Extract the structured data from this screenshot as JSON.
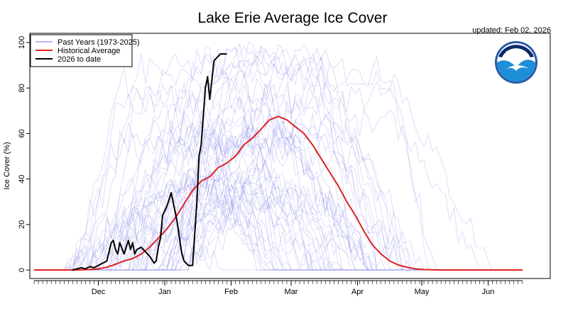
{
  "chart_data": {
    "type": "line",
    "title": "Lake Erie Average Ice Cover",
    "updated": "updated: Feb 02, 2026",
    "ylabel": "Ice Cover (%)",
    "xlabel": "",
    "xlim": [
      -2,
      241
    ],
    "ylim": [
      0,
      100
    ],
    "yticks": [
      "0",
      "20",
      "40",
      "60",
      "80",
      "100"
    ],
    "x_ticks": [
      {
        "label": "Dec",
        "day": 30
      },
      {
        "label": "Jan",
        "day": 61
      },
      {
        "label": "Feb",
        "day": 92
      },
      {
        "label": "Mar",
        "day": 120
      },
      {
        "label": "Apr",
        "day": 151
      },
      {
        "label": "May",
        "day": 181
      },
      {
        "label": "Jun",
        "day": 212
      }
    ],
    "grid": false,
    "legend": {
      "position": "top-left",
      "entries": [
        {
          "label": "Past Years (1973-2025)",
          "color": "#8f8fe6"
        },
        {
          "label": "Historical Average",
          "color": "#e02020"
        },
        {
          "label": "2026 to date",
          "color": "#000000"
        }
      ]
    },
    "logo": {
      "text": "NOAA"
    },
    "series": [
      {
        "name": "Historical Average",
        "color": "#e02020",
        "x": [
          0,
          10,
          20,
          26,
          30,
          34,
          38,
          42,
          46,
          50,
          54,
          58,
          62,
          66,
          70,
          74,
          78,
          82,
          86,
          90,
          94,
          98,
          102,
          106,
          110,
          114,
          118,
          122,
          126,
          130,
          134,
          138,
          142,
          146,
          150,
          154,
          158,
          162,
          166,
          170,
          174,
          178,
          182,
          186,
          190,
          194,
          198,
          206,
          214,
          222,
          228
        ],
        "y": [
          0,
          0,
          0,
          0.2,
          0.5,
          1.2,
          2.5,
          4,
          5,
          7,
          10,
          14,
          18,
          23,
          29,
          35,
          39,
          41,
          45,
          47,
          50,
          55,
          58,
          62,
          66,
          67.5,
          66,
          63,
          60,
          55,
          49,
          43,
          37,
          30,
          24,
          17,
          11,
          7,
          4,
          2.2,
          1.2,
          0.5,
          0.2,
          0.1,
          0,
          0,
          0,
          0,
          0,
          0,
          0
        ]
      },
      {
        "name": "2026 to date",
        "color": "#000000",
        "x": [
          18,
          20,
          22,
          24,
          26,
          28,
          30,
          32,
          34,
          36,
          37,
          38,
          39,
          40,
          42,
          44,
          45,
          46,
          47,
          48,
          50,
          52,
          54,
          56,
          57,
          58,
          59,
          60,
          62,
          64,
          66,
          67,
          68,
          69,
          70,
          72,
          74,
          76,
          77,
          78,
          80,
          81,
          82,
          84,
          85,
          86,
          87,
          88,
          90
        ],
        "y": [
          0,
          0.5,
          1,
          0.5,
          1.5,
          1,
          2,
          3,
          4,
          12,
          13,
          9,
          7,
          12,
          7,
          13,
          9,
          12,
          7,
          9,
          10,
          8,
          6,
          3,
          4,
          10,
          14,
          24,
          28,
          34,
          25,
          20,
          13,
          7,
          4,
          2,
          2,
          30,
          50,
          55,
          80,
          85,
          75,
          92,
          93,
          94,
          95,
          95,
          95
        ]
      }
    ]
  }
}
